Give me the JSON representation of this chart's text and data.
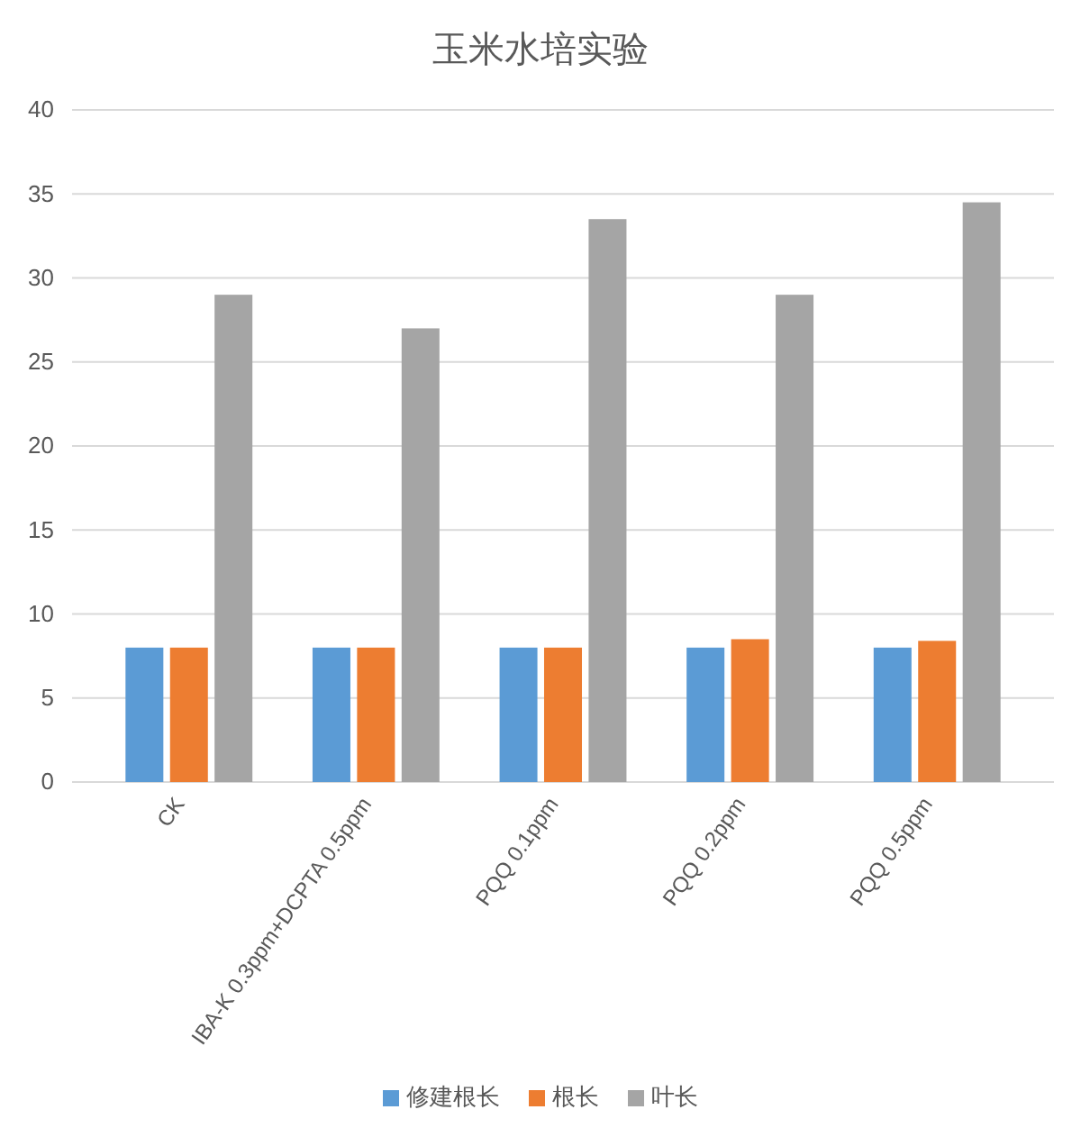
{
  "chart_data": {
    "type": "bar",
    "title": "玉米水培实验",
    "categories": [
      "CK",
      "IBA-K 0.3ppm+DCPTA 0.5ppm",
      "PQQ 0.1ppm",
      "PQQ 0.2ppm",
      "PQQ 0.5ppm"
    ],
    "series": [
      {
        "name": "修建根长",
        "color": "#5b9bd5",
        "values": [
          8,
          8,
          8,
          8,
          8
        ]
      },
      {
        "name": "根长",
        "color": "#ed7d31",
        "values": [
          8,
          8,
          8,
          8.5,
          8.4
        ]
      },
      {
        "name": "叶长",
        "color": "#a5a5a5",
        "values": [
          29,
          27,
          33.5,
          29,
          34.5
        ]
      }
    ],
    "ylim": [
      0,
      40
    ],
    "yticks": [
      0,
      5,
      10,
      15,
      20,
      25,
      30,
      35,
      40
    ],
    "grid": "y",
    "legend": "bottom"
  }
}
